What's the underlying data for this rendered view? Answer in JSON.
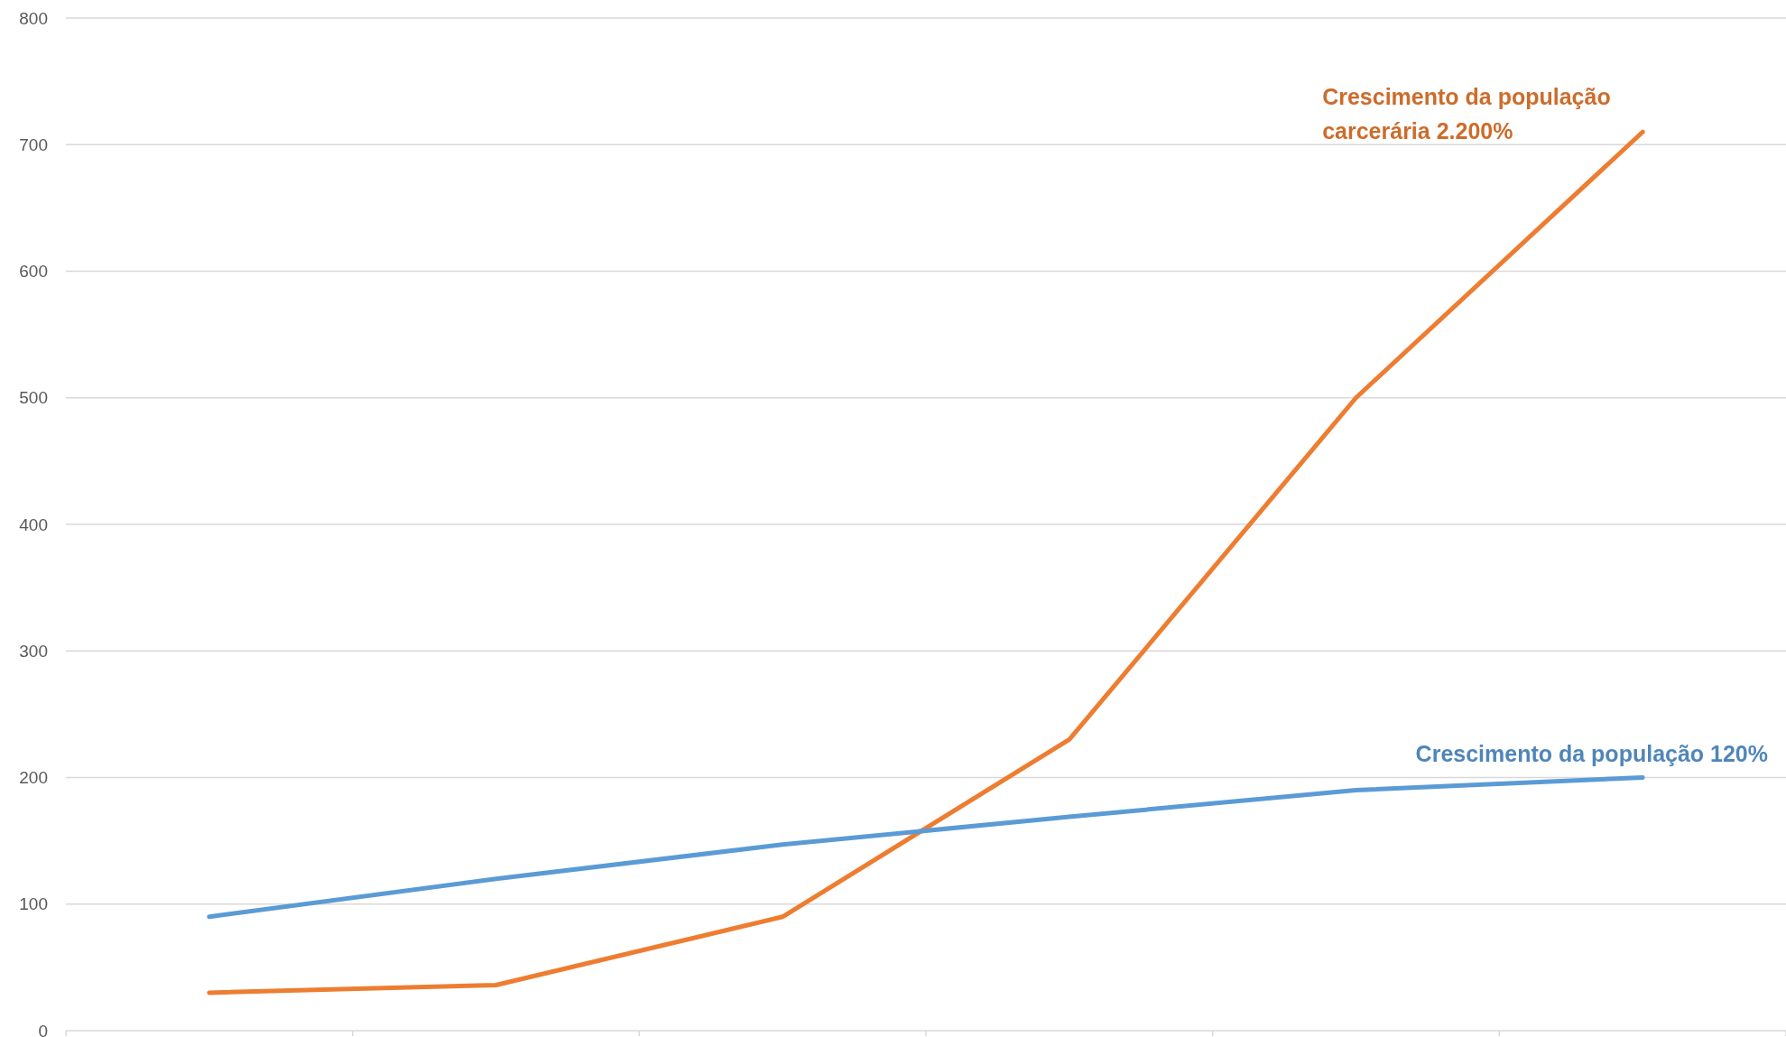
{
  "chart_data": {
    "type": "line",
    "categories": [
      null,
      null,
      null,
      null,
      null,
      null
    ],
    "series": [
      {
        "name": "Crescimento da população carcerária 2.200%",
        "color": "#ed7d31",
        "values": [
          30,
          36,
          90,
          230,
          500,
          710
        ]
      },
      {
        "name": "Crescimento da população 120%",
        "color": "#5b9bd5",
        "values": [
          90,
          120,
          147,
          169,
          190,
          200
        ]
      }
    ],
    "ylim": [
      0,
      800
    ],
    "yticks": [
      0,
      100,
      200,
      300,
      400,
      500,
      600,
      700,
      800
    ],
    "grid": "y",
    "marker": "none",
    "line_style": "solid"
  }
}
